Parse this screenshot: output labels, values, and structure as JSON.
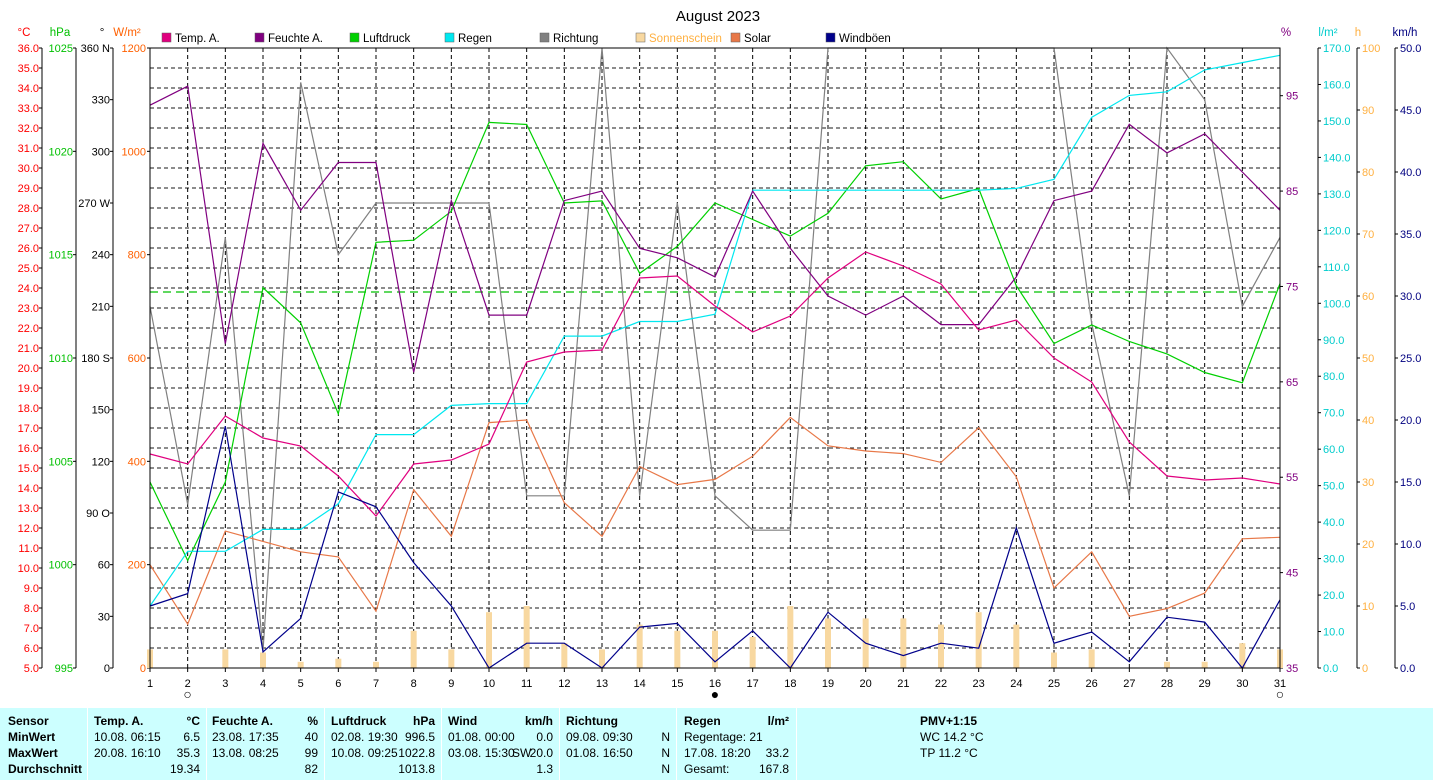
{
  "chart_data": {
    "type": "line",
    "title": "August 2023",
    "categories": [
      "1",
      "2",
      "3",
      "4",
      "5",
      "6",
      "7",
      "8",
      "9",
      "10",
      "11",
      "12",
      "13",
      "14",
      "15",
      "16",
      "17",
      "18",
      "19",
      "20",
      "21",
      "22",
      "23",
      "24",
      "25",
      "26",
      "27",
      "28",
      "29",
      "30",
      "31"
    ],
    "legend": [
      {
        "name": "Temp. A.",
        "color": "#e0007f"
      },
      {
        "name": "Feuchte A.",
        "color": "#800080"
      },
      {
        "name": "Luftdruck",
        "color": "#00d000"
      },
      {
        "name": "Regen",
        "color": "#00e8f0"
      },
      {
        "name": "Richtung",
        "color": "#808080"
      },
      {
        "name": "Sonnenschein",
        "color": "#f8d8a0"
      },
      {
        "name": "Solar",
        "color": "#e87848"
      },
      {
        "name": "Windböen",
        "color": "#00008b"
      }
    ],
    "series": [
      {
        "name": "Temp. A.",
        "axis": "temp",
        "color": "#e0007f",
        "values": [
          15.7,
          15.2,
          17.6,
          16.5,
          16.1,
          14.6,
          12.6,
          15.2,
          15.4,
          16.2,
          20.3,
          20.8,
          20.9,
          24.5,
          24.6,
          23.1,
          21.8,
          22.6,
          24.5,
          25.8,
          25.1,
          24.2,
          21.9,
          22.4,
          20.5,
          19.3,
          16.3,
          14.6,
          14.4,
          14.5,
          14.2
        ]
      },
      {
        "name": "Feuchte A.",
        "axis": "humidity",
        "color": "#800080",
        "values": [
          94,
          96,
          69,
          90,
          83,
          88,
          88,
          66,
          84,
          72,
          72,
          84,
          85,
          79,
          78,
          76,
          85,
          79,
          74,
          72,
          74,
          71,
          71,
          76,
          84,
          85,
          92,
          89,
          91,
          87,
          83
        ]
      },
      {
        "name": "Luftdruck",
        "axis": "pressure",
        "color": "#00d000",
        "values": [
          1004,
          1000.2,
          1004,
          1013.4,
          1011.7,
          1007.3,
          1015.6,
          1015.7,
          1017.1,
          1021.4,
          1021.3,
          1017.5,
          1017.6,
          1014.1,
          1015.4,
          1017.5,
          1016.7,
          1015.9,
          1017,
          1019.3,
          1019.5,
          1017.7,
          1018.2,
          1013.5,
          1010.7,
          1011.6,
          1010.8,
          1010.2,
          1009.3,
          1008.8,
          1013.6
        ]
      },
      {
        "name": "Regen",
        "axis": "rain",
        "color": "#00e8f0",
        "values": [
          17,
          32,
          32,
          38,
          38,
          45,
          64,
          64,
          72,
          72.5,
          72.5,
          91,
          91,
          95,
          95,
          97,
          131,
          131,
          131,
          131,
          131,
          131,
          131,
          131.5,
          134,
          151,
          157,
          158,
          164,
          166,
          168
        ]
      },
      {
        "name": "Richtung",
        "axis": "direction",
        "color": "#808080",
        "values": [
          210,
          95,
          250,
          10,
          340,
          240,
          270,
          270,
          270,
          270,
          100,
          100,
          360,
          100,
          270,
          100,
          80,
          80,
          360,
          360,
          360,
          360,
          360,
          360,
          360,
          200,
          100,
          360,
          330,
          210,
          250
        ]
      },
      {
        "name": "Sonnenschein",
        "axis": "sunshine",
        "color": "#f8d8a0",
        "type": "bar",
        "values": [
          3,
          0,
          3,
          2.5,
          1,
          1.5,
          1,
          6,
          3,
          9,
          10,
          4,
          3,
          7,
          6,
          6,
          5,
          10,
          8,
          8,
          8,
          7,
          9,
          7,
          2.5,
          3,
          0,
          1,
          1,
          4,
          3
        ]
      },
      {
        "name": "Solar",
        "axis": "solar",
        "color": "#e87848",
        "values": [
          200,
          85,
          265,
          245,
          225,
          215,
          110,
          345,
          255,
          475,
          480,
          320,
          255,
          390,
          355,
          365,
          410,
          485,
          430,
          420,
          415,
          398,
          465,
          370,
          155,
          225,
          100,
          115,
          145,
          250,
          253
        ]
      },
      {
        "name": "Windböen",
        "axis": "wind",
        "color": "#00008b",
        "values": [
          5,
          6,
          19.5,
          1.3,
          4,
          14.2,
          13,
          8.5,
          5,
          0,
          2,
          2,
          0,
          3.3,
          3.6,
          0.5,
          3,
          0,
          4.5,
          2,
          1,
          2,
          1.6,
          11.3,
          2,
          2.9,
          0.5,
          4.1,
          3.7,
          0,
          5.5
        ]
      }
    ],
    "reference_line": {
      "axis": "temp",
      "value": 23.8,
      "color": "#00c000"
    },
    "axes": {
      "temp": {
        "label": "°C",
        "color": "#ff0000",
        "range": [
          5,
          36
        ],
        "ticks": [
          "36.0",
          "35.0",
          "34.0",
          "33.0",
          "32.0",
          "31.0",
          "30.0",
          "29.0",
          "28.0",
          "27.0",
          "26.0",
          "25.0",
          "24.0",
          "23.0",
          "22.0",
          "21.0",
          "20.0",
          "19.0",
          "18.0",
          "17.0",
          "16.0",
          "15.0",
          "14.0",
          "13.0",
          "12.0",
          "11.0",
          "10.0",
          "9.0",
          "8.0",
          "7.0",
          "6.0",
          "5.0"
        ]
      },
      "pressure": {
        "label": "hPa",
        "color": "#00c000",
        "range": [
          995,
          1025
        ],
        "ticks": [
          "1025",
          "1020",
          "1015",
          "1010",
          "1005",
          "1000",
          "995"
        ]
      },
      "direction": {
        "label": "°",
        "color": "#000000",
        "range": [
          0,
          360
        ],
        "ticks": [
          "360 N",
          "330",
          "300",
          "270 W",
          "240",
          "210",
          "180 S",
          "150",
          "120",
          "90  O",
          "60",
          "30",
          "0"
        ]
      },
      "solar": {
        "label": "W/m²",
        "color": "#ff6000",
        "range": [
          0,
          1200
        ],
        "ticks": [
          "1200",
          "1000",
          "800",
          "600",
          "400",
          "200",
          "0"
        ]
      },
      "humidity": {
        "label": "%",
        "color": "#800080",
        "range": [
          35,
          100
        ],
        "ticks": [
          "95",
          "85",
          "75",
          "65",
          "55",
          "45",
          "35"
        ]
      },
      "rain": {
        "label": "l/m²",
        "color": "#00cccc",
        "range": [
          0,
          170
        ],
        "ticks": [
          "170.0",
          "160.0",
          "150.0",
          "140.0",
          "130.0",
          "120.0",
          "110.0",
          "100.0",
          "90.0",
          "80.0",
          "70.0",
          "60.0",
          "50.0",
          "40.0",
          "30.0",
          "20.0",
          "10.0",
          "0.0"
        ]
      },
      "sunshine": {
        "label": "h",
        "color": "#ffb040",
        "range": [
          0,
          100
        ],
        "ticks": [
          "100",
          "90",
          "80",
          "70",
          "60",
          "50",
          "40",
          "30",
          "20",
          "10",
          "0"
        ]
      },
      "wind": {
        "label": "km/h",
        "color": "#000080",
        "range": [
          0,
          50
        ],
        "ticks": [
          "50.0",
          "45.0",
          "40.0",
          "35.0",
          "30.0",
          "25.0",
          "20.0",
          "15.0",
          "10.0",
          "5.0",
          "0.0"
        ]
      }
    },
    "moon_phases": [
      {
        "day": 2,
        "symbol": "○"
      },
      {
        "day": 16,
        "symbol": "●"
      },
      {
        "day": 31,
        "symbol": "○"
      }
    ],
    "grid": true
  },
  "stats": {
    "sensor": {
      "header": "Sensor",
      "rows": [
        "MinWert",
        "MaxWert",
        "Durchschnitt"
      ]
    },
    "temp": {
      "header": "Temp. A.",
      "unit": "°C",
      "min_time": "10.08.  06:15",
      "min": "6.5",
      "max_time": "20.08.  16:10",
      "max": "35.3",
      "avg": "19.34"
    },
    "humidity": {
      "header": "Feuchte A.",
      "unit": "%",
      "min_time": "23.08.  17:35",
      "min": "40",
      "max_time": "13.08.  08:25",
      "max": "99",
      "avg": "82"
    },
    "pressure": {
      "header": "Luftdruck",
      "unit": "hPa",
      "min_time": "02.08.  19:30",
      "min": "996.5",
      "max_time": "10.08.  09:25",
      "max": "1022.8",
      "avg": "1013.8"
    },
    "wind": {
      "header": "Wind",
      "unit": "km/h",
      "min_time": "01.08.  00:00",
      "min": "0.0",
      "max_time": "03.08.  15:30",
      "max_dir": "SW",
      "max": "20.0",
      "avg": "1.3"
    },
    "direction": {
      "header": "Richtung",
      "min_time": "09.08.  09:30",
      "min": "N",
      "max_time": "01.08.  16:50",
      "max": "N",
      "avg": "N"
    },
    "rain": {
      "header": "Regen",
      "unit": "l/m²",
      "days_label": "Regentage: 21",
      "max_time": "17.08.  18:20",
      "max": "33.2",
      "total_label": "Gesamt:",
      "total": "167.8"
    },
    "pmv": {
      "header": "PMV+1:15",
      "wc": "WC 14.2 °C",
      "tp": "TP 11.2 °C"
    }
  }
}
